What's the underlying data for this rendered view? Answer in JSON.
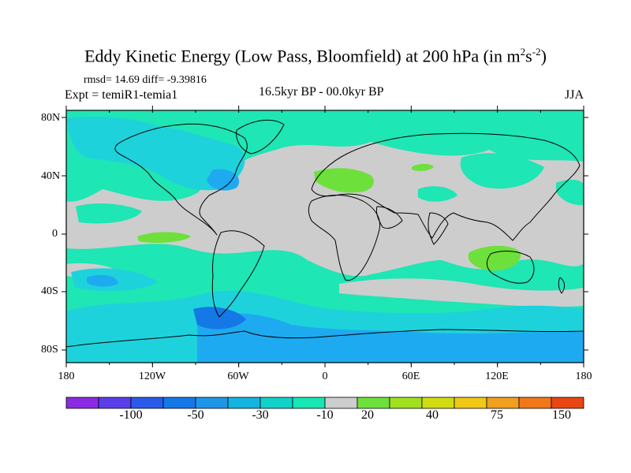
{
  "title_main": "Eddy Kinetic Energy (Low Pass, Bloomfield) at 200 hPa (in m",
  "title_sup1": "2",
  "title_mid": "s",
  "title_sup2": "-2",
  "title_end": ")",
  "stats": "rmsd= 14.69 diff= -9.39816",
  "experiment": "Expt = temiR1-temia1",
  "period": "16.5kyr BP - 00.0kyr BP",
  "season": "JJA",
  "lat_labels": [
    "80N",
    "40N",
    "0",
    "40S",
    "80S"
  ],
  "lon_labels": [
    "180",
    "120W",
    "60W",
    "0",
    "60E",
    "120E",
    "180"
  ],
  "colorbar_labels": [
    "-100",
    "-50",
    "-30",
    "-10",
    "20",
    "40",
    "75",
    "150"
  ],
  "colorbar_colors": [
    "#8a2be2",
    "#5a3fe8",
    "#2a5ae8",
    "#1478e6",
    "#1e96e8",
    "#14b4e0",
    "#10d2c8",
    "#18e6b4",
    "#cdcdcd",
    "#6ee03c",
    "#a0e01e",
    "#d2dc14",
    "#f0c818",
    "#f0a01e",
    "#f07818",
    "#e84614"
  ],
  "map_colors": {
    "neutral": "#cdcdcd",
    "light": "#1ee6b4",
    "cyan": "#1ed2dc",
    "blue": "#1eaaf0",
    "deep": "#1478e6",
    "green": "#6ee03c"
  }
}
